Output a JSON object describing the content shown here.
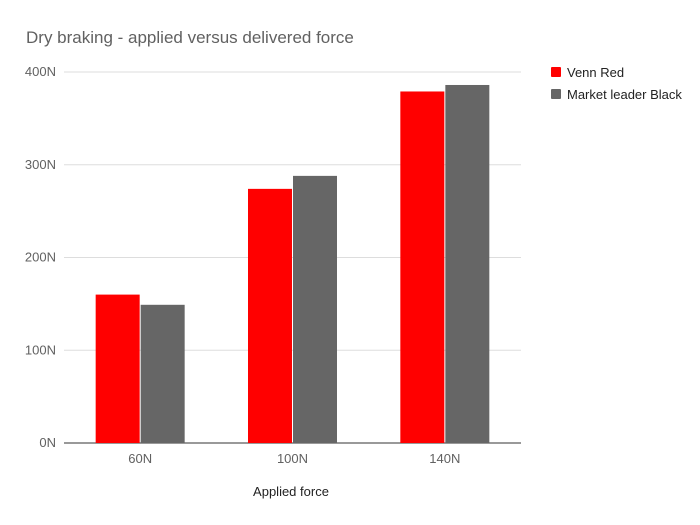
{
  "chart_data": {
    "type": "bar",
    "title": "Dry braking - applied versus delivered force",
    "xlabel": "Applied force",
    "ylabel": "",
    "categories": [
      "60N",
      "100N",
      "140N"
    ],
    "series": [
      {
        "name": "Venn Red",
        "color": "#ff0000",
        "values": [
          160,
          274,
          379
        ]
      },
      {
        "name": "Market leader Black",
        "color": "#666666",
        "values": [
          149,
          288,
          386
        ]
      }
    ],
    "ylim": [
      0,
      400
    ],
    "yticks": [
      0,
      100,
      200,
      300,
      400
    ],
    "ytick_labels": [
      "0N",
      "100N",
      "200N",
      "300N",
      "400N"
    ],
    "grid": true,
    "legend_position": "right"
  }
}
